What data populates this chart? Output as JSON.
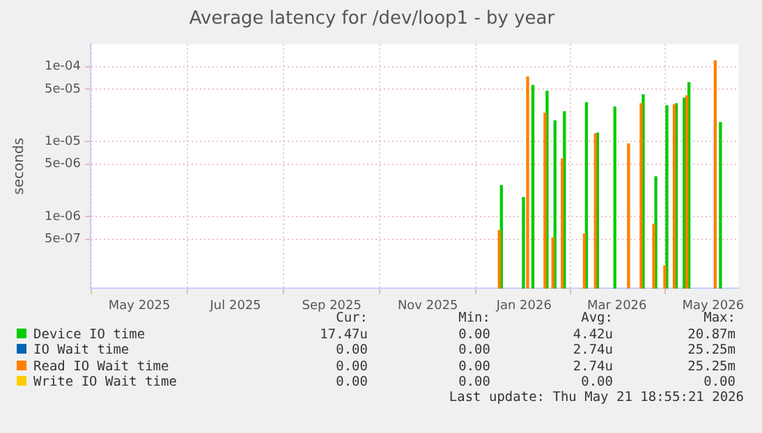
{
  "chart_data": {
    "type": "bar",
    "title": "Average latency for /dev/loop1 - by year",
    "ylabel": "seconds",
    "log": "y",
    "grid": true,
    "legend": "bottom",
    "xlim": [
      "2025-04-15",
      "2026-05-31"
    ],
    "xticks": [
      {
        "value": "2025-05-16",
        "label": "May 2025"
      },
      {
        "value": "2025-07-16",
        "label": "Jul 2025"
      },
      {
        "value": "2025-09-15",
        "label": "Sep 2025"
      },
      {
        "value": "2025-11-15",
        "label": "Nov 2025"
      },
      {
        "value": "2026-01-15",
        "label": "Jan 2026"
      },
      {
        "value": "2026-03-15",
        "label": "Mar 2026"
      },
      {
        "value": "2026-05-15",
        "label": "May 2026"
      }
    ],
    "ylim": [
      1.1e-07,
      0.0002
    ],
    "yticks": [
      {
        "value": 0.0001,
        "label": "1e-04"
      },
      {
        "value": 5e-05,
        "label": "5e-05"
      },
      {
        "value": 1e-05,
        "label": "1e-05"
      },
      {
        "value": 5e-06,
        "label": "5e-06"
      },
      {
        "value": 1e-06,
        "label": "1e-06"
      },
      {
        "value": 5e-07,
        "label": "5e-07"
      }
    ],
    "series": [
      {
        "name": "Device IO time",
        "color": "#00cc00",
        "x": [
          "2025-12-31",
          "2026-01-14",
          "2026-01-20",
          "2026-01-29",
          "2026-02-03",
          "2026-02-09",
          "2026-02-23",
          "2026-03-02",
          "2026-03-13",
          "2026-03-31",
          "2026-04-08",
          "2026-04-15",
          "2026-04-21",
          "2026-04-26",
          "2026-04-29",
          "2026-05-19"
        ],
        "values": [
          2.6e-06,
          1.8e-06,
          5.6e-05,
          4.7e-05,
          1.9e-05,
          2.5e-05,
          3.3e-05,
          1.3e-05,
          2.9e-05,
          4.2e-05,
          3.4e-06,
          3e-05,
          3.2e-05,
          3.8e-05,
          6.1e-05,
          1.8e-05
        ]
      },
      {
        "name": "IO Wait time",
        "color": "#0066b3"
      },
      {
        "name": "Read IO Wait time",
        "color": "#ff8000",
        "x": [
          "2025-12-31",
          "2026-01-18",
          "2026-01-29",
          "2026-02-03",
          "2026-02-09",
          "2026-02-23",
          "2026-03-02",
          "2026-03-23",
          "2026-03-31",
          "2026-04-08",
          "2026-04-15",
          "2026-04-21",
          "2026-04-29",
          "2026-05-17"
        ],
        "values": [
          6.5e-07,
          7.3e-05,
          2.4e-05,
          5.2e-07,
          5.9e-06,
          5.9e-07,
          1.27e-05,
          9.3e-06,
          3.2e-05,
          7.9e-07,
          2.2e-07,
          3.1e-05,
          4.1e-05,
          0.000119
        ]
      },
      {
        "name": "Write IO Wait time",
        "color": "#ffcc00"
      }
    ],
    "annotations": [
      "Cur:",
      "Min:",
      "Avg:",
      "Max:",
      "17.47u",
      "0.00",
      "4.42u",
      "20.87m",
      "0.00",
      "0.00",
      "2.74u",
      "25.25m",
      "0.00",
      "0.00",
      "2.74u",
      "25.25m",
      "0.00",
      "0.00",
      "0.00",
      "0.00",
      "Last update: Thu May 21 18:55:21 2026"
    ]
  }
}
